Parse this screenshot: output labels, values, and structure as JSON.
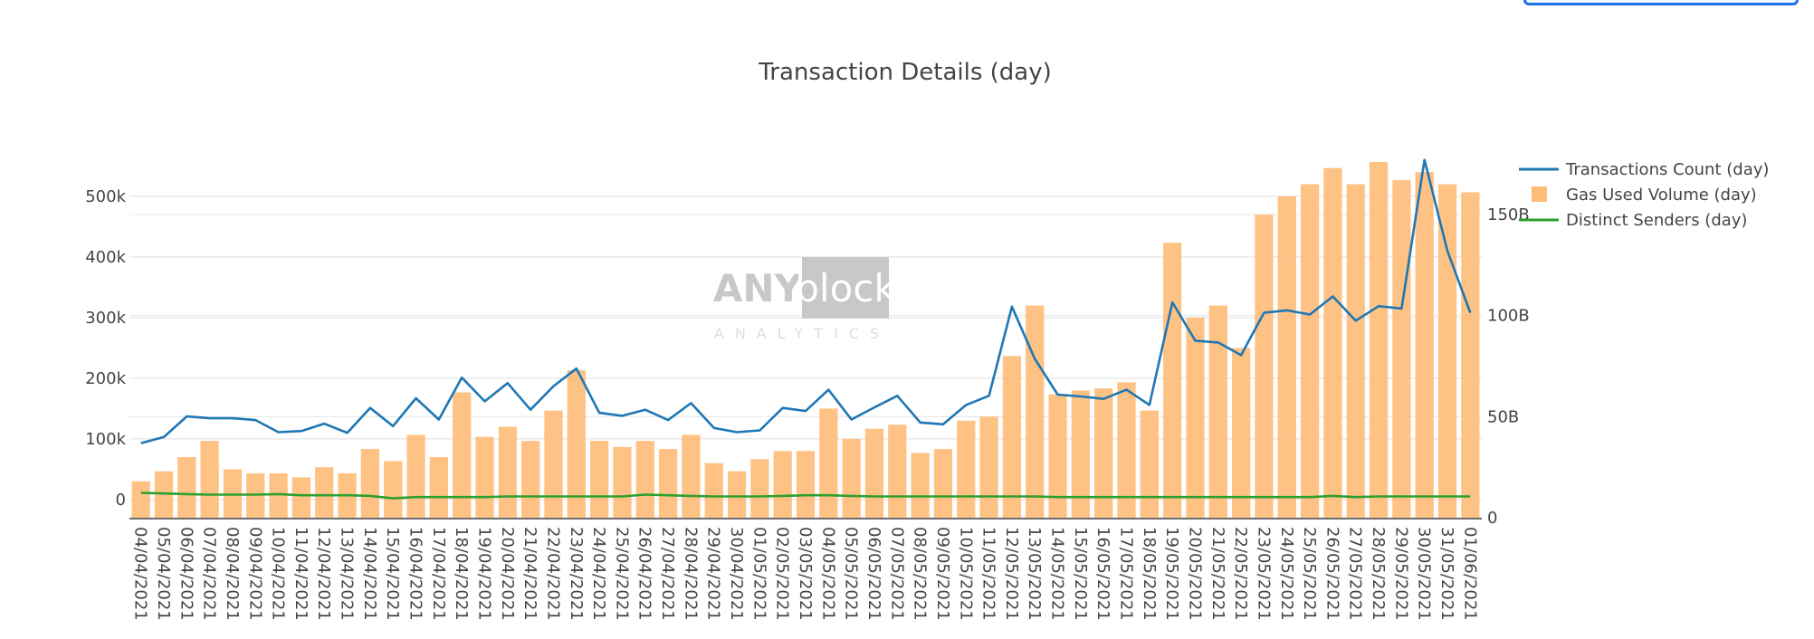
{
  "top_button": {
    "label": ""
  },
  "colors": {
    "transactions": "#1f77b4",
    "gas": "#ffbb78",
    "senders": "#2ca02c",
    "grid": "#e6e6e6",
    "text": "#444444"
  },
  "watermark": {
    "brand_left": "ANY",
    "brand_right": "block",
    "sub": "ANALYTICS"
  },
  "chart_data": {
    "type": "bar",
    "title": "Transaction Details (day)",
    "xlabel": "",
    "ylabel": "",
    "grid": true,
    "legend_position": "top-right",
    "y_left": {
      "range": [
        -30000,
        570000
      ],
      "ticks": [
        0,
        100000,
        200000,
        300000,
        400000,
        500000
      ],
      "tick_labels": [
        "0",
        "100k",
        "200k",
        "300k",
        "400k",
        "500k"
      ]
    },
    "y_right": {
      "range": [
        0,
        180
      ],
      "ticks": [
        0,
        50,
        100,
        150
      ],
      "tick_labels": [
        "0",
        "50B",
        "100B",
        "150B"
      ]
    },
    "categories": [
      "04/04/2021",
      "05/04/2021",
      "06/04/2021",
      "07/04/2021",
      "08/04/2021",
      "09/04/2021",
      "10/04/2021",
      "11/04/2021",
      "12/04/2021",
      "13/04/2021",
      "14/04/2021",
      "15/04/2021",
      "16/04/2021",
      "17/04/2021",
      "18/04/2021",
      "19/04/2021",
      "20/04/2021",
      "21/04/2021",
      "22/04/2021",
      "23/04/2021",
      "24/04/2021",
      "25/04/2021",
      "26/04/2021",
      "27/04/2021",
      "28/04/2021",
      "29/04/2021",
      "30/04/2021",
      "01/05/2021",
      "02/05/2021",
      "03/05/2021",
      "04/05/2021",
      "05/05/2021",
      "06/05/2021",
      "07/05/2021",
      "08/05/2021",
      "09/05/2021",
      "10/05/2021",
      "11/05/2021",
      "12/05/2021",
      "13/05/2021",
      "14/05/2021",
      "15/05/2021",
      "16/05/2021",
      "17/05/2021",
      "18/05/2021",
      "19/05/2021",
      "20/05/2021",
      "21/05/2021",
      "22/05/2021",
      "23/05/2021",
      "24/05/2021",
      "25/05/2021",
      "26/05/2021",
      "27/05/2021",
      "28/05/2021",
      "29/05/2021",
      "30/05/2021",
      "31/05/2021",
      "01/06/2021"
    ],
    "series": [
      {
        "name": "Transactions Count (day)",
        "type": "line",
        "axis": "left",
        "values": [
          93000,
          103000,
          137000,
          134000,
          134000,
          131000,
          111000,
          113000,
          125000,
          110000,
          151000,
          121000,
          167000,
          132000,
          201000,
          162000,
          192000,
          148000,
          187000,
          216000,
          143000,
          138000,
          148000,
          131000,
          159000,
          118000,
          111000,
          114000,
          151000,
          146000,
          181000,
          132000,
          152000,
          171000,
          127000,
          124000,
          156000,
          171000,
          318000,
          232000,
          173000,
          170000,
          166000,
          181000,
          156000,
          325000,
          262000,
          259000,
          238000,
          308000,
          312000,
          305000,
          335000,
          295000,
          319000,
          315000,
          560000,
          410000,
          308000
        ]
      },
      {
        "name": "Gas Used Volume (day)",
        "type": "bar",
        "axis": "right",
        "values": [
          18,
          23,
          30,
          38,
          24,
          22,
          22,
          20,
          25,
          22,
          34,
          28,
          41,
          30,
          62,
          40,
          45,
          38,
          53,
          73,
          38,
          35,
          38,
          34,
          41,
          27,
          23,
          29,
          33,
          33,
          54,
          39,
          44,
          46,
          32,
          34,
          48,
          50,
          80,
          105,
          61,
          63,
          64,
          67,
          53,
          136,
          99,
          105,
          84,
          150,
          159,
          165,
          173,
          165,
          176,
          167,
          171,
          165,
          161
        ]
      },
      {
        "name": "Distinct Senders (day)",
        "type": "line",
        "axis": "left",
        "values": [
          11000,
          10000,
          9000,
          8000,
          8000,
          8000,
          9000,
          7000,
          7000,
          7000,
          6000,
          2000,
          4000,
          4000,
          4000,
          4000,
          5000,
          5000,
          5000,
          5000,
          5000,
          5000,
          8000,
          7000,
          6000,
          5000,
          5000,
          5000,
          6000,
          7000,
          7000,
          6000,
          5000,
          5000,
          5000,
          5000,
          5000,
          5000,
          5000,
          5000,
          4000,
          4000,
          4000,
          4000,
          4000,
          4000,
          4000,
          4000,
          4000,
          4000,
          4000,
          4000,
          6000,
          4000,
          5000,
          5000,
          5000,
          5000,
          5000
        ]
      }
    ]
  }
}
